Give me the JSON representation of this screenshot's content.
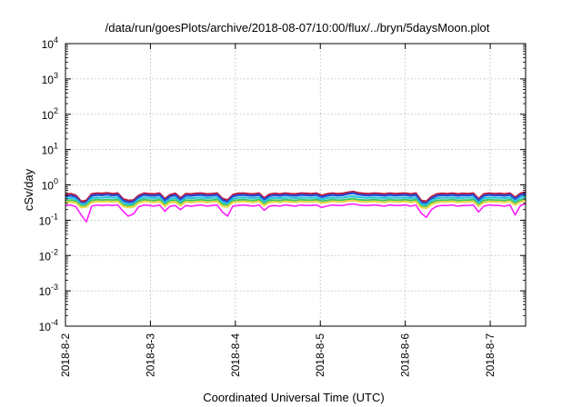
{
  "chart_data": {
    "type": "line",
    "title": "/data/run/goesPlots/archive/2018-08-07/10:00/flux/../bryn/5daysMoon.plot",
    "xlabel": "Coordinated Universal Time (UTC)",
    "ylabel": "cSv/day",
    "yscale": "log",
    "ylim": [
      0.0001,
      10000
    ],
    "y_ticks": [
      {
        "base": "10",
        "exp": "-4",
        "value": 0.0001
      },
      {
        "base": "10",
        "exp": "-3",
        "value": 0.001
      },
      {
        "base": "10",
        "exp": "-2",
        "value": 0.01
      },
      {
        "base": "10",
        "exp": "-1",
        "value": 0.1
      },
      {
        "base": "10",
        "exp": "0",
        "value": 1
      },
      {
        "base": "10",
        "exp": "1",
        "value": 10
      },
      {
        "base": "10",
        "exp": "2",
        "value": 100
      },
      {
        "base": "10",
        "exp": "3",
        "value": 1000
      },
      {
        "base": "10",
        "exp": "4",
        "value": 10000
      }
    ],
    "xlim": [
      "2018-08-02",
      "2018-08-07 10:00"
    ],
    "x_ticks": [
      {
        "label": "2018-8-2",
        "value": "2018-08-02"
      },
      {
        "label": "2018-8-3",
        "value": "2018-08-03"
      },
      {
        "label": "2018-8-4",
        "value": "2018-08-04"
      },
      {
        "label": "2018-8-5",
        "value": "2018-08-05"
      },
      {
        "label": "2018-8-6",
        "value": "2018-08-06"
      },
      {
        "label": "2018-8-7",
        "value": "2018-08-07"
      }
    ],
    "grid": true,
    "series": [
      {
        "color": "#c0193c",
        "values": [
          0.53,
          0.56,
          0.5,
          0.34,
          0.36,
          0.55,
          0.58,
          0.57,
          0.59,
          0.56,
          0.58,
          0.4,
          0.36,
          0.37,
          0.5,
          0.58,
          0.56,
          0.55,
          0.58,
          0.4,
          0.52,
          0.57,
          0.42,
          0.56,
          0.55,
          0.57,
          0.58,
          0.55,
          0.56,
          0.58,
          0.41,
          0.37,
          0.52,
          0.57,
          0.58,
          0.56,
          0.55,
          0.58,
          0.42,
          0.54,
          0.57,
          0.55,
          0.58,
          0.56,
          0.55,
          0.58,
          0.57,
          0.56,
          0.58,
          0.5,
          0.55,
          0.58,
          0.56,
          0.57,
          0.61,
          0.64,
          0.59,
          0.57,
          0.56,
          0.58,
          0.57,
          0.55,
          0.58,
          0.56,
          0.57,
          0.58,
          0.55,
          0.58,
          0.36,
          0.34,
          0.46,
          0.55,
          0.57,
          0.56,
          0.58,
          0.55,
          0.57,
          0.56,
          0.58,
          0.4,
          0.55,
          0.58,
          0.56,
          0.57,
          0.55,
          0.58,
          0.44,
          0.57,
          0.62
        ]
      },
      {
        "color": "#1f4fd8",
        "values": [
          0.47,
          0.5,
          0.45,
          0.3,
          0.32,
          0.49,
          0.52,
          0.51,
          0.53,
          0.5,
          0.52,
          0.36,
          0.32,
          0.33,
          0.45,
          0.52,
          0.5,
          0.49,
          0.52,
          0.36,
          0.47,
          0.51,
          0.38,
          0.5,
          0.49,
          0.51,
          0.52,
          0.49,
          0.5,
          0.52,
          0.37,
          0.33,
          0.47,
          0.51,
          0.52,
          0.5,
          0.49,
          0.52,
          0.38,
          0.48,
          0.51,
          0.49,
          0.52,
          0.5,
          0.49,
          0.52,
          0.51,
          0.5,
          0.52,
          0.45,
          0.49,
          0.52,
          0.5,
          0.51,
          0.55,
          0.58,
          0.53,
          0.51,
          0.5,
          0.52,
          0.51,
          0.49,
          0.52,
          0.5,
          0.51,
          0.52,
          0.49,
          0.52,
          0.32,
          0.3,
          0.41,
          0.49,
          0.51,
          0.5,
          0.52,
          0.49,
          0.51,
          0.5,
          0.52,
          0.36,
          0.49,
          0.52,
          0.5,
          0.51,
          0.49,
          0.52,
          0.4,
          0.51,
          0.56
        ]
      },
      {
        "color": "#2ec4e0",
        "values": [
          0.41,
          0.43,
          0.39,
          0.28,
          0.29,
          0.42,
          0.44,
          0.43,
          0.45,
          0.43,
          0.44,
          0.31,
          0.28,
          0.29,
          0.39,
          0.44,
          0.43,
          0.42,
          0.44,
          0.31,
          0.4,
          0.43,
          0.33,
          0.43,
          0.42,
          0.43,
          0.44,
          0.42,
          0.43,
          0.44,
          0.32,
          0.29,
          0.4,
          0.43,
          0.44,
          0.43,
          0.42,
          0.44,
          0.33,
          0.41,
          0.43,
          0.42,
          0.44,
          0.43,
          0.42,
          0.44,
          0.43,
          0.43,
          0.44,
          0.39,
          0.42,
          0.44,
          0.43,
          0.43,
          0.46,
          0.48,
          0.45,
          0.43,
          0.43,
          0.44,
          0.43,
          0.42,
          0.44,
          0.43,
          0.43,
          0.44,
          0.42,
          0.44,
          0.28,
          0.27,
          0.36,
          0.42,
          0.43,
          0.43,
          0.44,
          0.42,
          0.43,
          0.43,
          0.44,
          0.31,
          0.42,
          0.44,
          0.43,
          0.43,
          0.42,
          0.44,
          0.34,
          0.43,
          0.47
        ]
      },
      {
        "color": "#3cc46b",
        "values": [
          0.35,
          0.37,
          0.34,
          0.25,
          0.26,
          0.36,
          0.38,
          0.37,
          0.38,
          0.37,
          0.38,
          0.27,
          0.25,
          0.26,
          0.34,
          0.38,
          0.37,
          0.36,
          0.38,
          0.27,
          0.35,
          0.37,
          0.29,
          0.37,
          0.36,
          0.37,
          0.38,
          0.36,
          0.37,
          0.38,
          0.28,
          0.26,
          0.35,
          0.37,
          0.38,
          0.37,
          0.36,
          0.38,
          0.29,
          0.36,
          0.37,
          0.36,
          0.38,
          0.37,
          0.36,
          0.38,
          0.37,
          0.37,
          0.38,
          0.34,
          0.36,
          0.38,
          0.37,
          0.37,
          0.39,
          0.41,
          0.38,
          0.37,
          0.37,
          0.38,
          0.37,
          0.36,
          0.38,
          0.37,
          0.37,
          0.38,
          0.36,
          0.38,
          0.25,
          0.24,
          0.31,
          0.36,
          0.37,
          0.37,
          0.38,
          0.36,
          0.37,
          0.37,
          0.38,
          0.27,
          0.36,
          0.38,
          0.37,
          0.37,
          0.36,
          0.38,
          0.3,
          0.37,
          0.4
        ]
      },
      {
        "color": "#e8d84a",
        "values": [
          0.32,
          0.33,
          0.31,
          0.23,
          0.24,
          0.32,
          0.34,
          0.33,
          0.34,
          0.33,
          0.34,
          0.25,
          0.23,
          0.24,
          0.31,
          0.34,
          0.33,
          0.32,
          0.34,
          0.25,
          0.32,
          0.33,
          0.26,
          0.33,
          0.32,
          0.33,
          0.34,
          0.32,
          0.33,
          0.34,
          0.25,
          0.24,
          0.32,
          0.33,
          0.34,
          0.33,
          0.32,
          0.34,
          0.26,
          0.32,
          0.33,
          0.32,
          0.34,
          0.33,
          0.32,
          0.34,
          0.33,
          0.33,
          0.34,
          0.31,
          0.32,
          0.34,
          0.33,
          0.33,
          0.35,
          0.36,
          0.34,
          0.33,
          0.33,
          0.34,
          0.33,
          0.32,
          0.34,
          0.33,
          0.33,
          0.34,
          0.32,
          0.34,
          0.23,
          0.22,
          0.28,
          0.32,
          0.33,
          0.33,
          0.34,
          0.32,
          0.33,
          0.33,
          0.34,
          0.25,
          0.32,
          0.34,
          0.33,
          0.33,
          0.32,
          0.34,
          0.27,
          0.33,
          0.36
        ]
      },
      {
        "color": "#ff1fff",
        "values": [
          0.26,
          0.27,
          0.24,
          0.14,
          0.09,
          0.25,
          0.27,
          0.26,
          0.27,
          0.26,
          0.27,
          0.18,
          0.13,
          0.15,
          0.24,
          0.27,
          0.26,
          0.25,
          0.27,
          0.18,
          0.25,
          0.26,
          0.2,
          0.26,
          0.25,
          0.26,
          0.27,
          0.25,
          0.26,
          0.27,
          0.17,
          0.13,
          0.25,
          0.26,
          0.27,
          0.26,
          0.25,
          0.27,
          0.19,
          0.25,
          0.26,
          0.25,
          0.27,
          0.26,
          0.25,
          0.27,
          0.26,
          0.26,
          0.27,
          0.23,
          0.25,
          0.27,
          0.26,
          0.26,
          0.28,
          0.29,
          0.27,
          0.26,
          0.26,
          0.27,
          0.26,
          0.25,
          0.27,
          0.26,
          0.26,
          0.27,
          0.25,
          0.27,
          0.16,
          0.12,
          0.2,
          0.25,
          0.26,
          0.26,
          0.27,
          0.25,
          0.26,
          0.26,
          0.27,
          0.17,
          0.25,
          0.27,
          0.26,
          0.26,
          0.25,
          0.27,
          0.14,
          0.26,
          0.29
        ]
      }
    ]
  }
}
